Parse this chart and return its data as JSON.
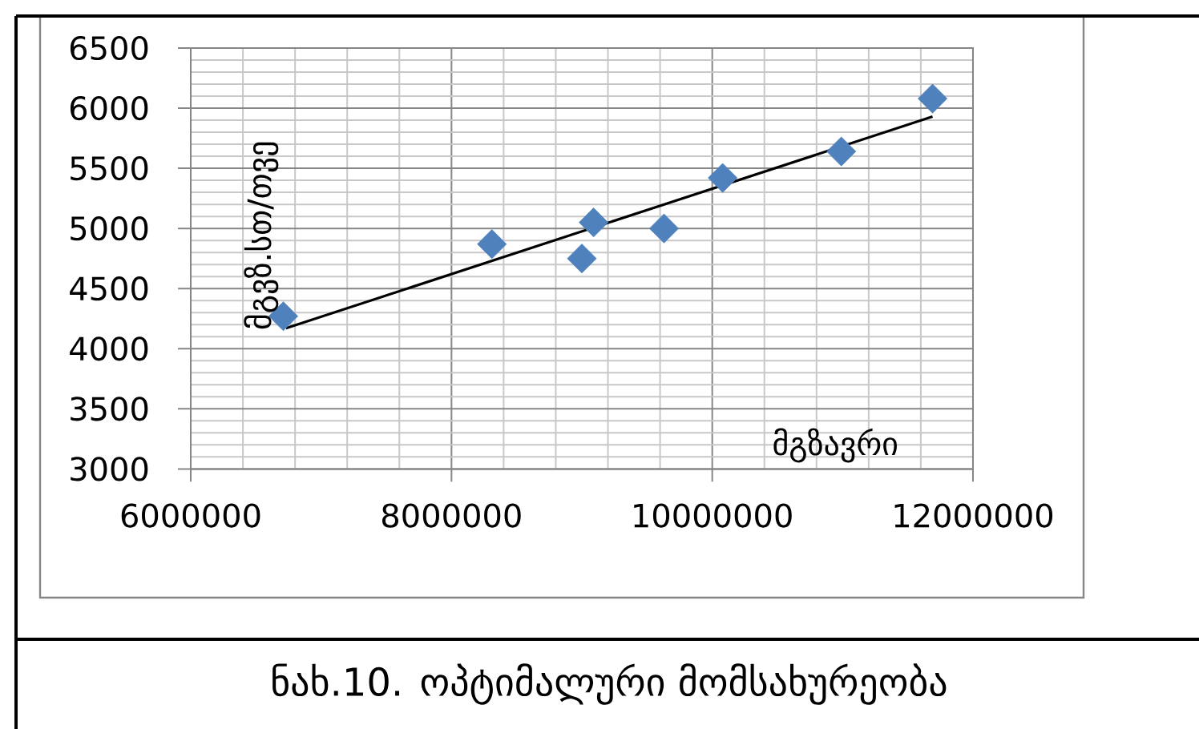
{
  "chart_data": {
    "type": "scatter",
    "xlabel": "მგზავრი",
    "ylabel": "მგვზ.სთ/თვე",
    "annotations": [
      "ნახ.10. ოპტიმალური მომსახურეობა"
    ],
    "xlim": [
      6000000,
      12000000
    ],
    "ylim": [
      3000,
      6500
    ],
    "xticks": [
      6000000,
      8000000,
      10000000,
      12000000
    ],
    "yticks": [
      3000,
      3500,
      4000,
      4500,
      5000,
      5500,
      6000,
      6500
    ],
    "grid": true,
    "series": [
      {
        "type": "scatter",
        "color": "#4f81bd",
        "marker": "diamond",
        "x": [
          6710000,
          8310000,
          9000000,
          9090000,
          9630000,
          10080000,
          10990000,
          11690000
        ],
        "values": [
          4270,
          4870,
          4750,
          5050,
          5000,
          5420,
          5640,
          6080
        ]
      },
      {
        "type": "line",
        "color": "#000000",
        "marker": "none",
        "line_style": "solid",
        "x": [
          6730000,
          11690000
        ],
        "values": [
          4170,
          5930
        ]
      }
    ]
  }
}
